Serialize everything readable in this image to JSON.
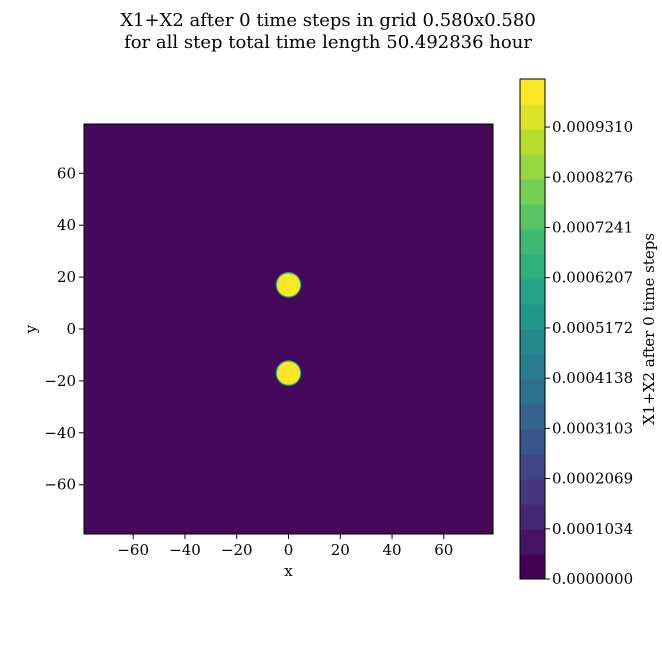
{
  "title_line1": "X1+X2 after 0 time steps in grid 0.580x0.580",
  "title_line2": "for all step total time length 50.492836 hour",
  "chart_data": {
    "type": "heatmap",
    "title": "X1+X2 after 0 time steps in grid 0.580x0.580 for all step total time length 50.492836 hour",
    "xlabel": "x",
    "ylabel": "y",
    "xlim": [
      -79,
      79
    ],
    "ylim": [
      -79,
      79
    ],
    "xticks": [
      -60,
      -40,
      -20,
      0,
      20,
      40,
      60
    ],
    "yticks": [
      -60,
      -40,
      -20,
      0,
      20,
      40,
      60
    ],
    "xtick_labels": [
      "−60",
      "−40",
      "−20",
      "0",
      "20",
      "40",
      "60"
    ],
    "ytick_labels": [
      "−60",
      "−40",
      "−20",
      "0",
      "20",
      "40",
      "60"
    ],
    "background_value": 0.0,
    "blobs": [
      {
        "x": 0,
        "y": 17,
        "radius": 4.5,
        "value": 0.00103
      },
      {
        "x": 0,
        "y": -17,
        "radius": 4.5,
        "value": 0.00103
      }
    ],
    "colorbar": {
      "label": "X1+X2 after 0 time steps",
      "min": 0.0,
      "max": 0.00103,
      "levels": 20,
      "colormap": "viridis",
      "ticks": [
        0.0,
        0.0001034,
        0.0002069,
        0.0003103,
        0.0004138,
        0.0005172,
        0.0006207,
        0.0007241,
        0.0008276,
        0.000931
      ],
      "tick_labels": [
        "0.0000000",
        "0.0001034",
        "0.0002069",
        "0.0003103",
        "0.0004138",
        "0.0005172",
        "0.0006207",
        "0.0007241",
        "0.0008276",
        "0.0009310"
      ]
    }
  }
}
